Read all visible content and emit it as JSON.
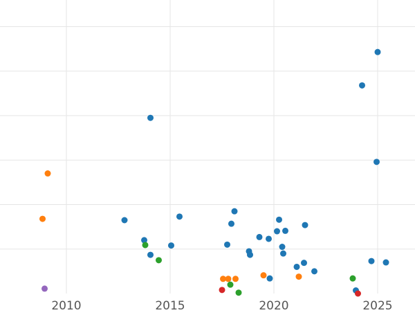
{
  "chart_data": {
    "type": "scatter",
    "title": "",
    "xlabel": "",
    "ylabel": "",
    "xlim": [
      2006.8,
      2026.8
    ],
    "ylim": [
      0,
      6.6
    ],
    "grid": true,
    "x_ticks": [
      2010,
      2015,
      2020,
      2025
    ],
    "x_tick_labels": [
      "2010",
      "2015",
      "2020",
      "2025"
    ],
    "y_gridlines": [
      1,
      2,
      3,
      4,
      5,
      6
    ],
    "series": [
      {
        "color": "#1f77b4",
        "points": [
          [
            2012.8,
            1.65
          ],
          [
            2013.75,
            1.2
          ],
          [
            2014.05,
            0.87
          ],
          [
            2014.05,
            3.95
          ],
          [
            2015.05,
            1.08
          ],
          [
            2015.45,
            1.73
          ],
          [
            2017.75,
            1.1
          ],
          [
            2017.95,
            1.57
          ],
          [
            2018.1,
            1.85
          ],
          [
            2018.8,
            0.95
          ],
          [
            2018.85,
            0.87
          ],
          [
            2019.3,
            1.27
          ],
          [
            2019.75,
            1.23
          ],
          [
            2019.8,
            0.34
          ],
          [
            2020.15,
            1.4
          ],
          [
            2020.25,
            1.66
          ],
          [
            2020.4,
            1.05
          ],
          [
            2020.45,
            0.9
          ],
          [
            2020.55,
            1.41
          ],
          [
            2021.1,
            0.6
          ],
          [
            2021.45,
            0.69
          ],
          [
            2021.5,
            1.54
          ],
          [
            2021.95,
            0.5
          ],
          [
            2023.95,
            0.07
          ],
          [
            2024.25,
            4.68
          ],
          [
            2024.7,
            0.73
          ],
          [
            2024.95,
            2.96
          ],
          [
            2025.0,
            5.43
          ],
          [
            2025.4,
            0.7
          ]
        ]
      },
      {
        "color": "#ff7f0e",
        "points": [
          [
            2008.85,
            1.68
          ],
          [
            2009.1,
            2.7
          ],
          [
            2017.55,
            0.33
          ],
          [
            2017.8,
            0.33
          ],
          [
            2018.15,
            0.33
          ],
          [
            2019.5,
            0.41
          ],
          [
            2021.2,
            0.38
          ]
        ]
      },
      {
        "color": "#2ca02c",
        "points": [
          [
            2013.8,
            1.09
          ],
          [
            2014.45,
            0.75
          ],
          [
            2017.9,
            0.2
          ],
          [
            2018.3,
            0.02
          ],
          [
            2023.8,
            0.34
          ]
        ]
      },
      {
        "color": "#d62728",
        "points": [
          [
            2017.5,
            0.08
          ],
          [
            2024.05,
            0.0
          ]
        ]
      },
      {
        "color": "#9467bd",
        "points": [
          [
            2008.95,
            0.11
          ]
        ]
      }
    ]
  }
}
